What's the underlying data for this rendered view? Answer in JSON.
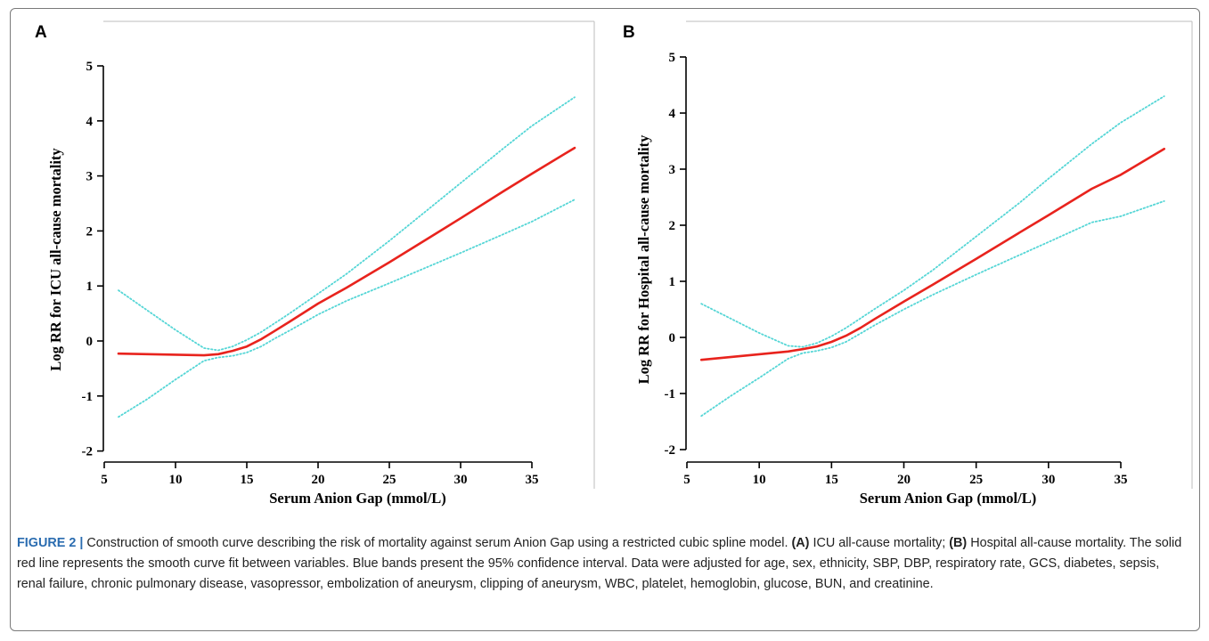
{
  "caption": {
    "figure_label": "FIGURE 2 |",
    "lead": "Construction of smooth curve describing the risk of mortality against serum Anion Gap using a restricted cubic spline model.",
    "a_tag": "(A)",
    "a_text": "ICU all-cause mortality;",
    "b_tag": "(B)",
    "rest": "Hospital all-cause mortality. The solid red line represents the smooth curve fit between variables. Blue bands present the 95% confidence interval. Data were adjusted for age, sex, ethnicity, SBP, DBP, respiratory rate, GCS, diabetes, sepsis, renal failure, chronic pulmonary disease, vasopressor, embolization of aneurysm, clipping of aneurysm, WBC, platelet, hemoglobin, glucose, BUN, and creatinine."
  },
  "colors": {
    "fit": "#e8231d",
    "ci": "#55d6d6",
    "axis": "#000000",
    "frame": "#7a7a7a",
    "figure_label": "#2a6cb0"
  },
  "chart_data": [
    {
      "panel": "A",
      "type": "line",
      "xlabel": "Serum Anion Gap (mmol/L)",
      "ylabel": "Log RR for ICU all-cause mortality",
      "xlim": [
        5,
        38
      ],
      "ylim": [
        -2,
        5
      ],
      "xticks": [
        5,
        10,
        15,
        20,
        25,
        30,
        35
      ],
      "yticks": [
        -2,
        -1,
        0,
        1,
        2,
        3,
        4,
        5
      ],
      "grid": false,
      "series": [
        {
          "role": "fit",
          "style": "solid",
          "x": [
            6,
            8,
            10,
            12,
            13,
            14,
            15,
            16,
            17,
            18,
            20,
            22,
            25,
            28,
            30,
            33,
            35,
            38
          ],
          "y": [
            -0.23,
            -0.24,
            -0.25,
            -0.26,
            -0.24,
            -0.18,
            -0.1,
            0.03,
            0.19,
            0.35,
            0.68,
            0.97,
            1.43,
            1.91,
            2.23,
            2.72,
            3.04,
            3.51
          ]
        },
        {
          "role": "ci_upper",
          "style": "dotted",
          "x": [
            6,
            8,
            10,
            12,
            13,
            14,
            15,
            16,
            17,
            18,
            20,
            22,
            25,
            28,
            30,
            33,
            35,
            38
          ],
          "y": [
            0.92,
            0.56,
            0.2,
            -0.13,
            -0.17,
            -0.1,
            0.02,
            0.16,
            0.33,
            0.5,
            0.86,
            1.22,
            1.82,
            2.45,
            2.87,
            3.5,
            3.91,
            4.43
          ]
        },
        {
          "role": "ci_lower",
          "style": "dotted",
          "x": [
            6,
            8,
            10,
            12,
            13,
            14,
            15,
            16,
            17,
            18,
            20,
            22,
            25,
            28,
            30,
            33,
            35,
            38
          ],
          "y": [
            -1.38,
            -1.06,
            -0.7,
            -0.36,
            -0.3,
            -0.27,
            -0.21,
            -0.1,
            0.05,
            0.19,
            0.48,
            0.73,
            1.05,
            1.38,
            1.6,
            1.94,
            2.17,
            2.57
          ]
        }
      ]
    },
    {
      "panel": "B",
      "type": "line",
      "xlabel": "Serum Anion Gap (mmol/L)",
      "ylabel": "Log RR for Hospital all-cause mortality",
      "xlim": [
        5,
        38
      ],
      "ylim": [
        -2,
        5
      ],
      "xticks": [
        5,
        10,
        15,
        20,
        25,
        30,
        35
      ],
      "yticks": [
        -2,
        -1,
        0,
        1,
        2,
        3,
        4,
        5
      ],
      "grid": false,
      "series": [
        {
          "role": "fit",
          "style": "solid",
          "x": [
            6,
            8,
            10,
            12,
            13,
            14,
            15,
            16,
            17,
            18,
            20,
            22,
            25,
            28,
            30,
            33,
            35,
            38
          ],
          "y": [
            -0.4,
            -0.35,
            -0.3,
            -0.25,
            -0.21,
            -0.16,
            -0.08,
            0.03,
            0.17,
            0.33,
            0.64,
            0.94,
            1.4,
            1.87,
            2.18,
            2.65,
            2.9,
            3.36
          ]
        },
        {
          "role": "ci_upper",
          "style": "dotted",
          "x": [
            6,
            8,
            10,
            12,
            13,
            14,
            15,
            16,
            17,
            18,
            20,
            22,
            25,
            28,
            30,
            33,
            35,
            38
          ],
          "y": [
            0.6,
            0.34,
            0.08,
            -0.15,
            -0.17,
            -0.1,
            0.02,
            0.17,
            0.34,
            0.51,
            0.84,
            1.2,
            1.8,
            2.4,
            2.83,
            3.45,
            3.83,
            4.3
          ]
        },
        {
          "role": "ci_lower",
          "style": "dotted",
          "x": [
            6,
            8,
            10,
            12,
            13,
            14,
            15,
            16,
            17,
            18,
            20,
            22,
            25,
            28,
            30,
            33,
            35,
            38
          ],
          "y": [
            -1.4,
            -1.05,
            -0.72,
            -0.38,
            -0.28,
            -0.24,
            -0.18,
            -0.08,
            0.07,
            0.22,
            0.5,
            0.76,
            1.12,
            1.47,
            1.7,
            2.05,
            2.16,
            2.43
          ]
        }
      ]
    }
  ]
}
